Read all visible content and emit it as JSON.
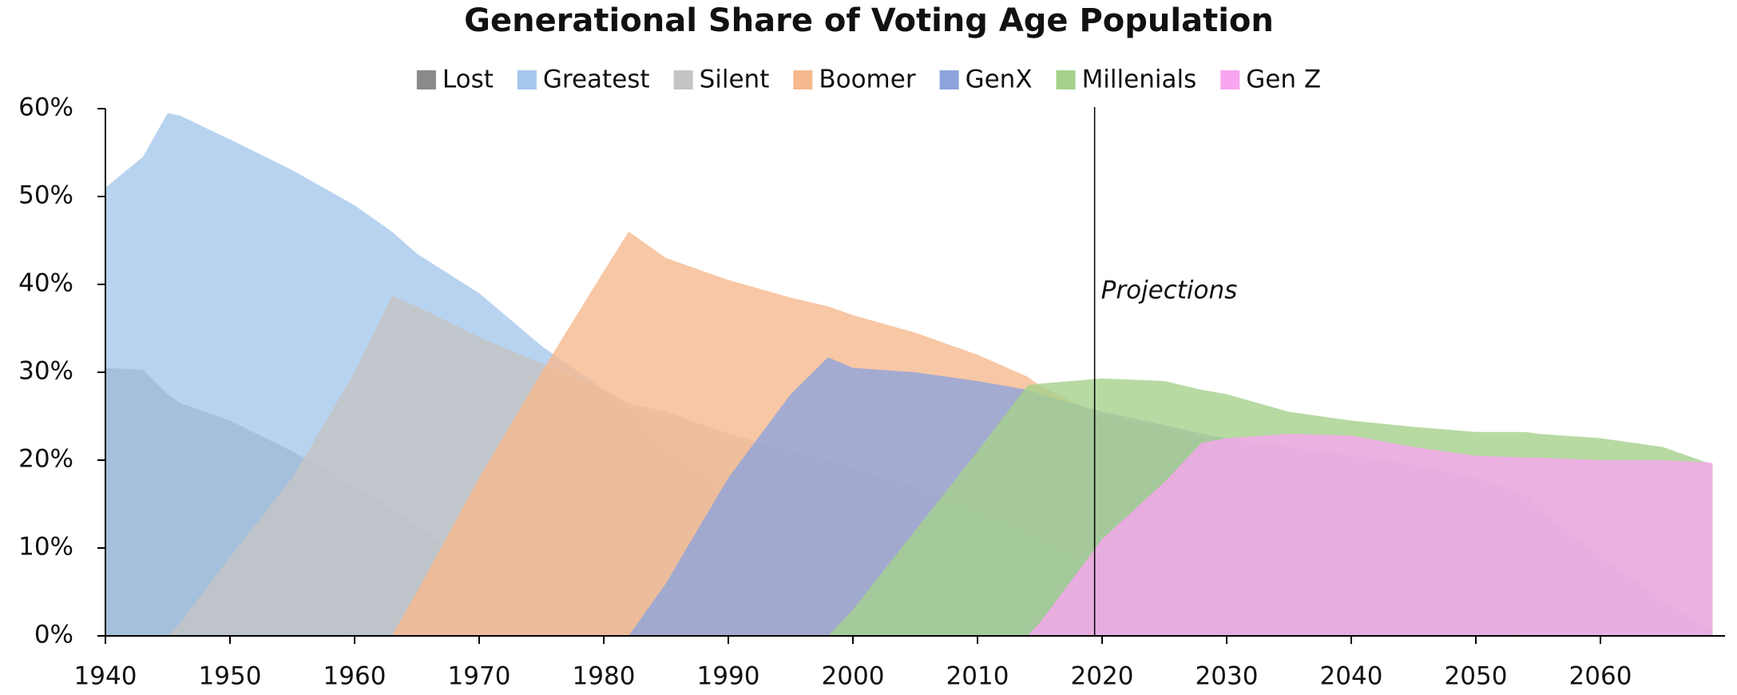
{
  "chart_data": {
    "type": "area",
    "title": "Generational Share of Voting Age Population",
    "x": [
      1940,
      1943,
      1945,
      1946,
      1950,
      1955,
      1960,
      1963,
      1965,
      1970,
      1975,
      1980,
      1982,
      1985,
      1990,
      1995,
      1998,
      2000,
      2005,
      2010,
      2014,
      2015,
      2020,
      2025,
      2028,
      2030,
      2035,
      2040,
      2045,
      2050,
      2054,
      2055,
      2060,
      2065,
      2069
    ],
    "series": [
      {
        "name": "Lost",
        "color": "#8a8a8a",
        "values": [
          30.5,
          30.3,
          27.5,
          26.5,
          24.5,
          21,
          17,
          14.5,
          12.5,
          8,
          4.5,
          2,
          1,
          0,
          null,
          null,
          null,
          null,
          null,
          null,
          null,
          null,
          null,
          null,
          null,
          null,
          null,
          null,
          null,
          null,
          null,
          null,
          null,
          null,
          null
        ]
      },
      {
        "name": "Greatest",
        "color": "#a6c8ec",
        "values": [
          51,
          54.5,
          59.5,
          59.2,
          56.5,
          53,
          49,
          46,
          43.5,
          39,
          33,
          28,
          26,
          21.5,
          16.5,
          11.5,
          9,
          7.5,
          4.5,
          2.5,
          1,
          0.8,
          0,
          null,
          null,
          null,
          null,
          null,
          null,
          null,
          null,
          null,
          null,
          null,
          null
        ]
      },
      {
        "name": "Silent",
        "color": "#c4c4c4",
        "values": [
          null,
          null,
          0,
          1.5,
          9,
          18,
          30,
          38.7,
          37.5,
          34,
          31,
          28,
          26.5,
          25.5,
          23,
          21,
          20,
          19,
          17,
          14,
          12,
          11,
          7.5,
          4,
          2,
          1,
          0,
          null,
          null,
          null,
          null,
          null,
          null,
          null,
          null
        ]
      },
      {
        "name": "Boomer",
        "color": "#f6b98f",
        "values": [
          null,
          null,
          null,
          null,
          null,
          null,
          null,
          0,
          5,
          18,
          30,
          41.5,
          46,
          43,
          40.5,
          38.5,
          37.5,
          36.5,
          34.5,
          32,
          29.5,
          28.5,
          25,
          23.5,
          22.5,
          21.5,
          19.5,
          14,
          8,
          3,
          0,
          null,
          null,
          null,
          null
        ]
      },
      {
        "name": "GenX",
        "color": "#8ea4dc",
        "values": [
          null,
          null,
          null,
          null,
          null,
          null,
          null,
          null,
          null,
          null,
          null,
          null,
          0,
          6,
          18,
          27.5,
          31.7,
          30.5,
          30,
          29,
          28,
          27.5,
          25.5,
          24,
          23,
          22.5,
          21.5,
          20.5,
          19.5,
          18,
          16,
          14.5,
          9,
          4,
          0.5
        ]
      },
      {
        "name": "Millenials",
        "color": "#a5d18c",
        "values": [
          null,
          null,
          null,
          null,
          null,
          null,
          null,
          null,
          null,
          null,
          null,
          null,
          null,
          null,
          null,
          null,
          0,
          3,
          12,
          21,
          28.5,
          28.7,
          29.3,
          29,
          28,
          27.5,
          25.5,
          24.5,
          23.8,
          23.2,
          23.2,
          23,
          22.5,
          21.5,
          19.5
        ]
      },
      {
        "name": "Gen Z",
        "color": "#f7a6ef",
        "values": [
          null,
          null,
          null,
          null,
          null,
          null,
          null,
          null,
          null,
          null,
          null,
          null,
          null,
          null,
          null,
          null,
          null,
          null,
          null,
          null,
          0,
          1.5,
          11,
          17.5,
          22,
          22.5,
          23,
          22.8,
          21.5,
          20.5,
          20.3,
          20.3,
          20,
          20,
          19.7
        ]
      }
    ],
    "xlim": [
      1940,
      2070
    ],
    "xticks": [
      1940,
      1950,
      1960,
      1970,
      1980,
      1990,
      2000,
      2010,
      2020,
      2030,
      2040,
      2050,
      2060
    ],
    "ylim": [
      0,
      60
    ],
    "yticks": [
      {
        "value": 0,
        "label": "0%"
      },
      {
        "value": 10,
        "label": "10%"
      },
      {
        "value": 20,
        "label": "20%"
      },
      {
        "value": 30,
        "label": "30%"
      },
      {
        "value": 40,
        "label": "40%"
      },
      {
        "value": 50,
        "label": "50%"
      },
      {
        "value": 60,
        "label": "60%"
      }
    ],
    "fill_opacity": 0.8,
    "legend": "top",
    "annotations": [
      {
        "text": "Projections",
        "x": 2019.4
      }
    ]
  }
}
